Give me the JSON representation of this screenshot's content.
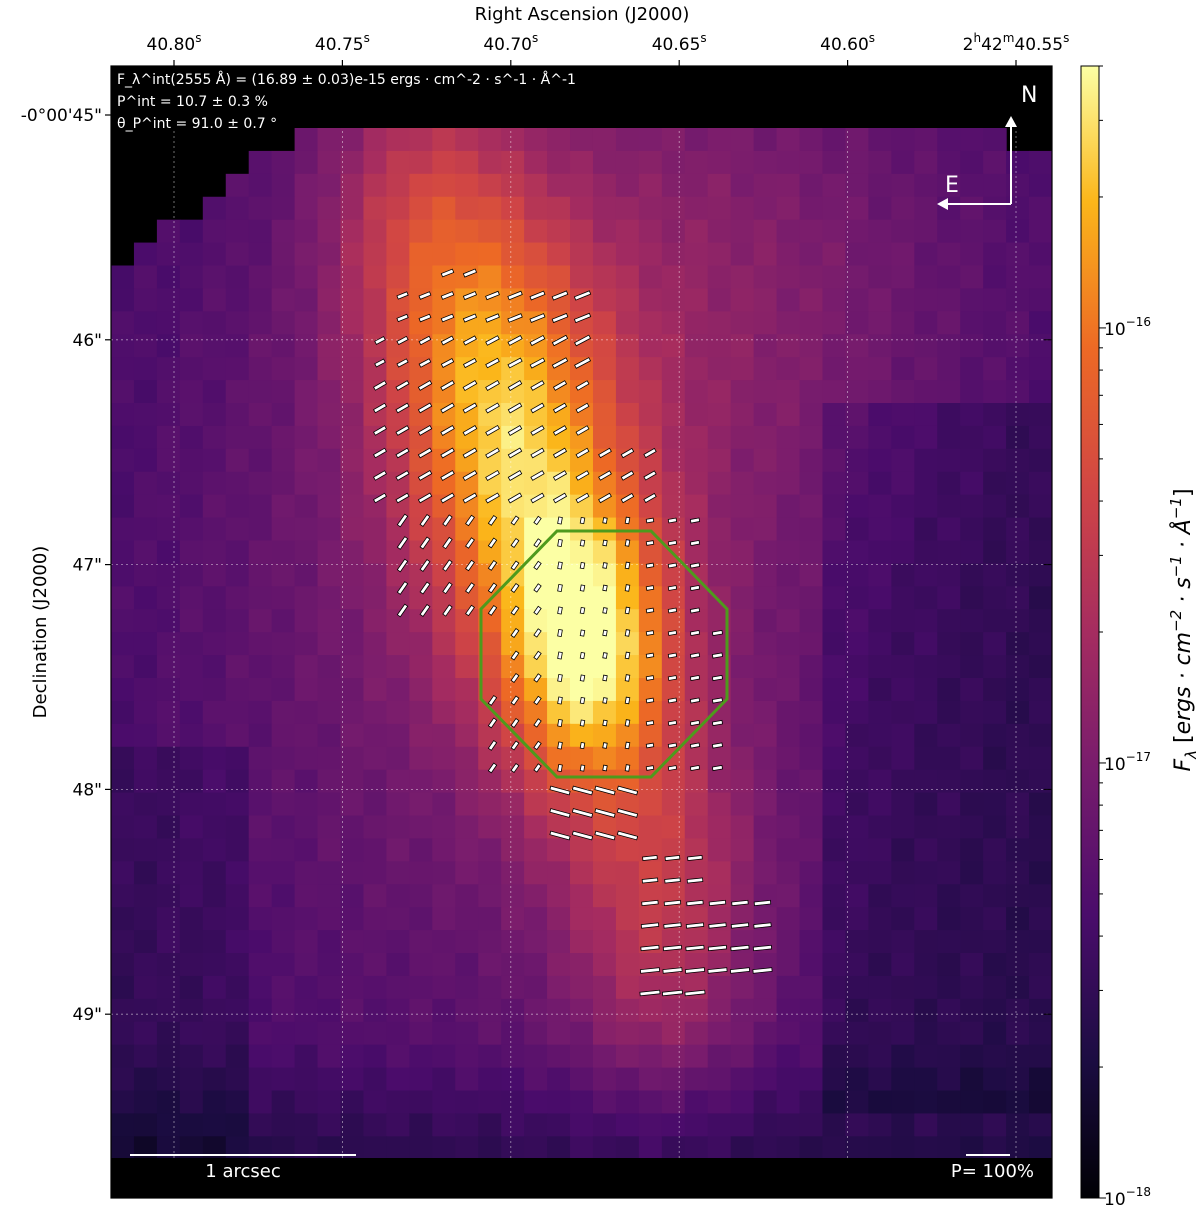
{
  "chart_data": {
    "type": "heatmap",
    "colormap": "inferno",
    "xlabel": "Right Ascension (J2000)",
    "ylabel": "Declination (J2000)",
    "x_tick_labels": [
      {
        "ra": 40.8,
        "label": "40.80",
        "sup": "s"
      },
      {
        "ra": 40.75,
        "label": "40.75",
        "sup": "s"
      },
      {
        "ra": 40.7,
        "label": "40.70",
        "sup": "s"
      },
      {
        "ra": 40.65,
        "label": "40.65",
        "sup": "s"
      },
      {
        "ra": 40.6,
        "label": "40.60",
        "sup": "s"
      },
      {
        "ra": 40.55,
        "label": "2h42m40.55s"
      }
    ],
    "y_tick_labels": [
      {
        "dec": 45,
        "label": "-0°00'45\""
      },
      {
        "dec": 46,
        "label": "46\""
      },
      {
        "dec": 47,
        "label": "47\""
      },
      {
        "dec": 48,
        "label": "48\""
      },
      {
        "dec": 49,
        "label": "49\""
      }
    ],
    "grid": true,
    "colorbar": {
      "label": "F_λ [ergs · cm^-2 · s^-1 · Å^-1]",
      "scale": "log",
      "range": [
        1e-18,
        4e-16
      ],
      "ticks": [
        "10^-16",
        "10^-17",
        "10^-18"
      ]
    },
    "annotations": {
      "flux": "F_λ^int(2555 Å) = (16.89 ± 0.03)e-15 ergs · cm^-2 · s^-1 · Å^-1",
      "pol_degree": "P^int = 10.7 ± 0.3 %",
      "pol_angle": "θ_P^int = 91.0 ± 0.7 °",
      "scale_bar": "1 arcsec",
      "pol_scale": "P= 100%",
      "north": "N",
      "east": "E"
    },
    "integration_region": {
      "shape": "octagon",
      "color": "#4e9a1c"
    },
    "peak": {
      "ra": 40.677,
      "dec": 47.35
    }
  }
}
